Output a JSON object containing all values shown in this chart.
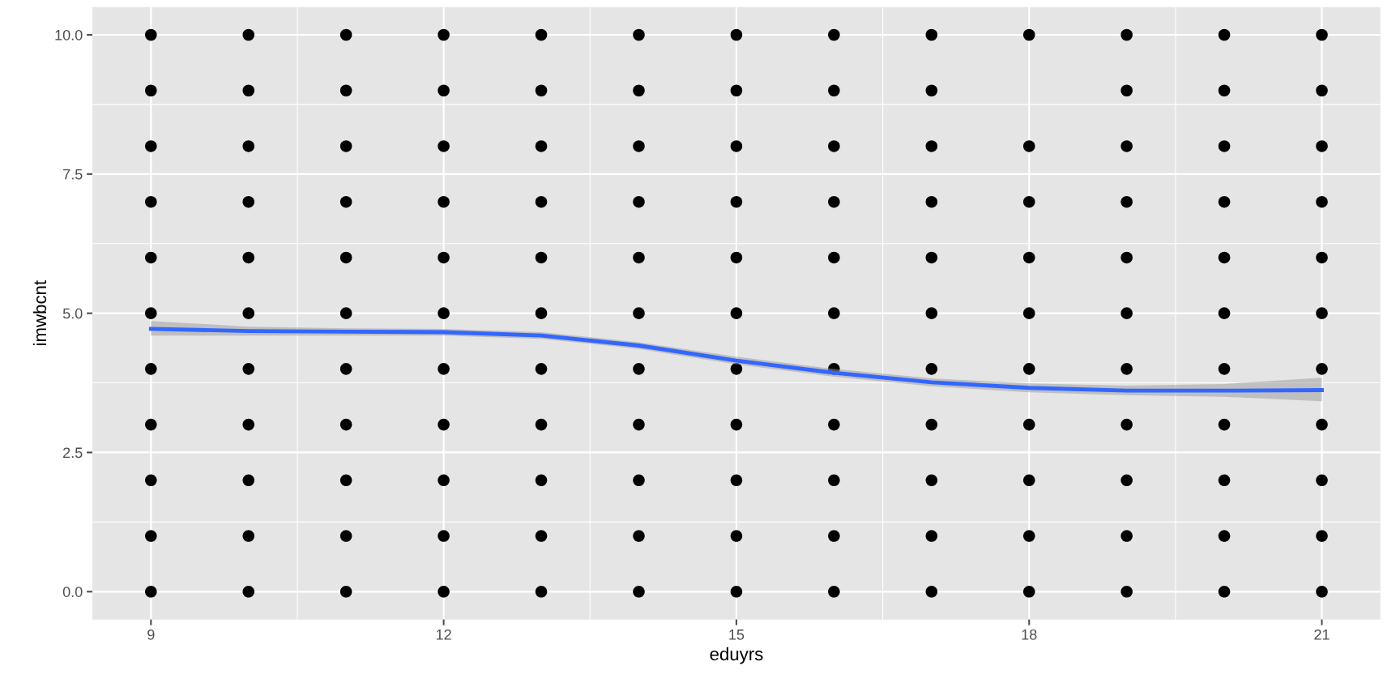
{
  "chart_data": {
    "type": "scatter",
    "xlabel": "eduyrs",
    "ylabel": "imwbcnt",
    "xlim": [
      8.4,
      21.6
    ],
    "ylim": [
      -0.5,
      10.5
    ],
    "xticks": [
      9,
      12,
      15,
      18,
      21
    ],
    "yticks": [
      {
        "value": 0,
        "label": "0.0"
      },
      {
        "value": 2.5,
        "label": "2.5"
      },
      {
        "value": 5,
        "label": "5.0"
      },
      {
        "value": 7.5,
        "label": "7.5"
      },
      {
        "value": 10,
        "label": "10.0"
      }
    ],
    "grid": true,
    "marker": "circle",
    "legend": false,
    "series": [
      {
        "color": "#000000",
        "x": [
          9,
          9,
          9,
          9,
          9,
          9,
          9,
          9,
          9,
          9,
          9,
          10,
          10,
          10,
          10,
          10,
          10,
          10,
          10,
          10,
          10,
          10,
          11,
          11,
          11,
          11,
          11,
          11,
          11,
          11,
          11,
          11,
          11,
          12,
          12,
          12,
          12,
          12,
          12,
          12,
          12,
          12,
          12,
          12,
          13,
          13,
          13,
          13,
          13,
          13,
          13,
          13,
          13,
          13,
          13,
          14,
          14,
          14,
          14,
          14,
          14,
          14,
          14,
          14,
          14,
          14,
          15,
          15,
          15,
          15,
          15,
          15,
          15,
          15,
          15,
          15,
          15,
          16,
          16,
          16,
          16,
          16,
          16,
          16,
          16,
          16,
          16,
          16,
          17,
          17,
          17,
          17,
          17,
          17,
          17,
          17,
          17,
          17,
          17,
          18,
          18,
          18,
          18,
          18,
          18,
          18,
          18,
          18,
          18,
          19,
          19,
          19,
          19,
          19,
          19,
          19,
          19,
          19,
          19,
          19,
          20,
          20,
          20,
          20,
          20,
          20,
          20,
          20,
          20,
          20,
          20,
          21,
          21,
          21,
          21,
          21,
          21,
          21,
          21,
          21,
          21,
          21
        ],
        "values": [
          0,
          1,
          2,
          3,
          4,
          5,
          6,
          7,
          8,
          9,
          10,
          0,
          1,
          2,
          3,
          4,
          5,
          6,
          7,
          8,
          9,
          10,
          0,
          1,
          2,
          3,
          4,
          5,
          6,
          7,
          8,
          9,
          10,
          0,
          1,
          2,
          3,
          4,
          5,
          6,
          7,
          8,
          9,
          10,
          0,
          1,
          2,
          3,
          4,
          5,
          6,
          7,
          8,
          9,
          10,
          0,
          1,
          2,
          3,
          4,
          5,
          6,
          7,
          8,
          9,
          10,
          0,
          1,
          2,
          3,
          4,
          5,
          6,
          7,
          8,
          9,
          10,
          0,
          1,
          2,
          3,
          4,
          5,
          6,
          7,
          8,
          9,
          10,
          0,
          1,
          2,
          3,
          4,
          5,
          6,
          7,
          8,
          9,
          10,
          0,
          1,
          2,
          3,
          4,
          5,
          6,
          7,
          8,
          10,
          0,
          1,
          2,
          3,
          4,
          5,
          6,
          7,
          8,
          9,
          10,
          0,
          1,
          2,
          3,
          4,
          5,
          6,
          7,
          8,
          9,
          10,
          0,
          1,
          2,
          3,
          4,
          5,
          6,
          7,
          8,
          9,
          10
        ]
      },
      {
        "type": "line",
        "color": "#3366ff",
        "marker": "none",
        "line_style": "solid",
        "x": [
          9,
          10,
          11,
          12,
          13,
          14,
          15,
          16,
          17,
          18,
          19,
          20,
          21
        ],
        "values": [
          4.72,
          4.68,
          4.67,
          4.66,
          4.6,
          4.42,
          4.15,
          3.93,
          3.76,
          3.66,
          3.61,
          3.61,
          3.62
        ],
        "lower": [
          4.6,
          4.6,
          4.6,
          4.6,
          4.54,
          4.36,
          4.08,
          3.86,
          3.69,
          3.58,
          3.53,
          3.5,
          3.42
        ],
        "upper": [
          4.86,
          4.76,
          4.73,
          4.72,
          4.66,
          4.48,
          4.22,
          4.0,
          3.83,
          3.74,
          3.7,
          3.73,
          3.84
        ]
      }
    ]
  }
}
